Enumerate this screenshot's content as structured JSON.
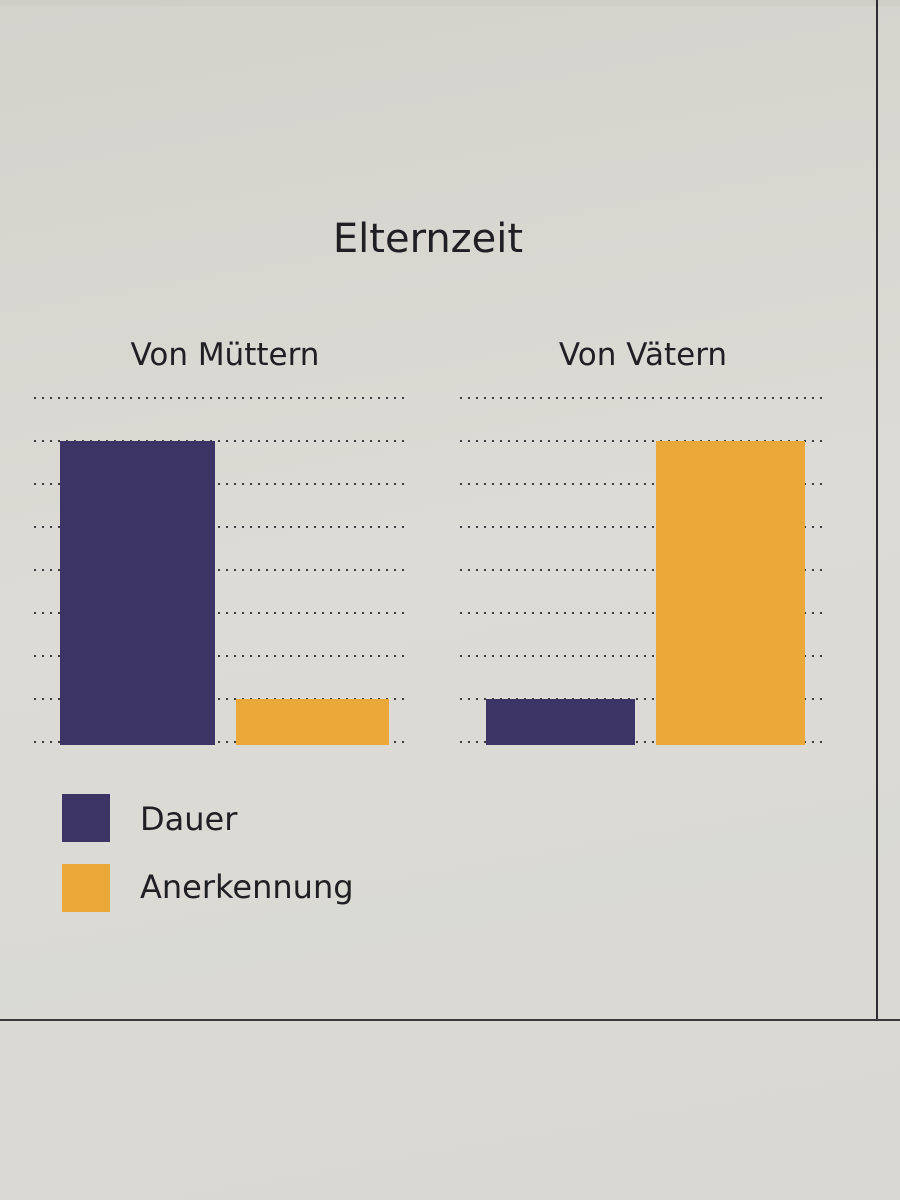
{
  "chart_data": {
    "type": "bar",
    "title": "Elternzeit",
    "categories": [
      "Von Müttern",
      "Von Vätern"
    ],
    "series": [
      {
        "name": "Dauer",
        "values": [
          7,
          1
        ],
        "color": "#3d3466"
      },
      {
        "name": "Anerkennung",
        "values": [
          1,
          7
        ],
        "color": "#eaa838"
      }
    ],
    "ylim": [
      0,
      8
    ],
    "grid": true,
    "grid_style": "dotted",
    "legend_position": "bottom-left"
  }
}
